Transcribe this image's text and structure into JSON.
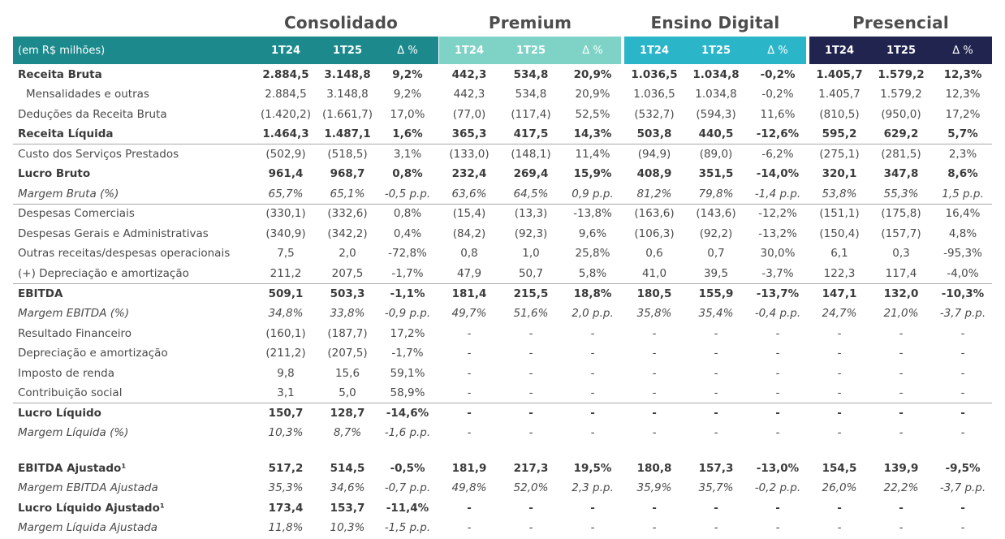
{
  "segments": [
    {
      "title": "Consolidado",
      "color": "#1c8a8c",
      "text_color": "#ffffff"
    },
    {
      "title": "Premium",
      "color": "#7fd3c6",
      "text_color": "#ffffff"
    },
    {
      "title": "Ensino Digital",
      "color": "#2bb5c9",
      "text_color": "#ffffff"
    },
    {
      "title": "Presencial",
      "color": "#20244f",
      "text_color": "#ffffff"
    }
  ],
  "header": {
    "unit_label": "(em R$ milhões)",
    "columns": [
      "1T24",
      "1T25",
      "Δ %"
    ]
  },
  "rows": [
    {
      "label": "Receita Bruta",
      "style": "bold",
      "values": [
        "2.884,5",
        "3.148,8",
        "9,2%",
        "442,3",
        "534,8",
        "20,9%",
        "1.036,5",
        "1.034,8",
        "-0,2%",
        "1.405,7",
        "1.579,2",
        "12,3%"
      ]
    },
    {
      "label": "Mensalidades e outras",
      "style": "indent",
      "values": [
        "2.884,5",
        "3.148,8",
        "9,2%",
        "442,3",
        "534,8",
        "20,9%",
        "1.036,5",
        "1.034,8",
        "-0,2%",
        "1.405,7",
        "1.579,2",
        "12,3%"
      ]
    },
    {
      "label": "Deduções da Receita Bruta",
      "style": "normal",
      "values": [
        "(1.420,2)",
        "(1.661,7)",
        "17,0%",
        "(77,0)",
        "(117,4)",
        "52,5%",
        "(532,7)",
        "(594,3)",
        "11,6%",
        "(810,5)",
        "(950,0)",
        "17,2%"
      ]
    },
    {
      "label": "Receita Líquida",
      "style": "bold",
      "values": [
        "1.464,3",
        "1.487,1",
        "1,6%",
        "365,3",
        "417,5",
        "14,3%",
        "503,8",
        "440,5",
        "-12,6%",
        "595,2",
        "629,2",
        "5,7%"
      ]
    },
    {
      "label": "Custo dos Serviços Prestados",
      "style": "normal",
      "values": [
        "(502,9)",
        "(518,5)",
        "3,1%",
        "(133,0)",
        "(148,1)",
        "11,4%",
        "(94,9)",
        "(89,0)",
        "-6,2%",
        "(275,1)",
        "(281,5)",
        "2,3%"
      ]
    },
    {
      "label": "Lucro Bruto",
      "style": "bold",
      "values": [
        "961,4",
        "968,7",
        "0,8%",
        "232,4",
        "269,4",
        "15,9%",
        "408,9",
        "351,5",
        "-14,0%",
        "320,1",
        "347,8",
        "8,6%"
      ]
    },
    {
      "label": "Margem Bruta (%)",
      "style": "italic",
      "values": [
        "65,7%",
        "65,1%",
        "-0,5 p.p.",
        "63,6%",
        "64,5%",
        "0,9 p.p.",
        "81,2%",
        "79,8%",
        "-1,4 p.p.",
        "53,8%",
        "55,3%",
        "1,5 p.p."
      ]
    },
    {
      "label": "Despesas Comerciais",
      "style": "normal",
      "values": [
        "(330,1)",
        "(332,6)",
        "0,8%",
        "(15,4)",
        "(13,3)",
        "-13,8%",
        "(163,6)",
        "(143,6)",
        "-12,2%",
        "(151,1)",
        "(175,8)",
        "16,4%"
      ]
    },
    {
      "label": "Despesas Gerais e Administrativas",
      "style": "normal",
      "values": [
        "(340,9)",
        "(342,2)",
        "0,4%",
        "(84,2)",
        "(92,3)",
        "9,6%",
        "(106,3)",
        "(92,2)",
        "-13,2%",
        "(150,4)",
        "(157,7)",
        "4,8%"
      ]
    },
    {
      "label": "Outras receitas/despesas operacionais",
      "style": "normal",
      "values": [
        "7,5",
        "2,0",
        "-72,8%",
        "0,8",
        "1,0",
        "25,8%",
        "0,6",
        "0,7",
        "30,0%",
        "6,1",
        "0,3",
        "-95,3%"
      ]
    },
    {
      "label": "(+) Depreciação e amortização",
      "style": "normal",
      "values": [
        "211,2",
        "207,5",
        "-1,7%",
        "47,9",
        "50,7",
        "5,8%",
        "41,0",
        "39,5",
        "-3,7%",
        "122,3",
        "117,4",
        "-4,0%"
      ]
    },
    {
      "label": "EBITDA",
      "style": "bold",
      "values": [
        "509,1",
        "503,3",
        "-1,1%",
        "181,4",
        "215,5",
        "18,8%",
        "180,5",
        "155,9",
        "-13,7%",
        "147,1",
        "132,0",
        "-10,3%"
      ]
    },
    {
      "label": "Margem EBITDA (%)",
      "style": "italic",
      "values": [
        "34,8%",
        "33,8%",
        "-0,9 p.p.",
        "49,7%",
        "51,6%",
        "2,0 p.p.",
        "35,8%",
        "35,4%",
        "-0,4 p.p.",
        "24,7%",
        "21,0%",
        "-3,7 p.p."
      ]
    },
    {
      "label": "Resultado Financeiro",
      "style": "normal",
      "values": [
        "(160,1)",
        "(187,7)",
        "17,2%",
        "-",
        "-",
        "-",
        "-",
        "-",
        "-",
        "-",
        "-",
        "-"
      ]
    },
    {
      "label": "Depreciação e amortização",
      "style": "normal",
      "values": [
        "(211,2)",
        "(207,5)",
        "-1,7%",
        "-",
        "-",
        "-",
        "-",
        "-",
        "-",
        "-",
        "-",
        "-"
      ]
    },
    {
      "label": "Imposto de renda",
      "style": "normal",
      "values": [
        "9,8",
        "15,6",
        "59,1%",
        "-",
        "-",
        "-",
        "-",
        "-",
        "-",
        "-",
        "-",
        "-"
      ]
    },
    {
      "label": "Contribuição social",
      "style": "normal",
      "values": [
        "3,1",
        "5,0",
        "58,9%",
        "-",
        "-",
        "-",
        "-",
        "-",
        "-",
        "-",
        "-",
        "-"
      ]
    },
    {
      "label": "Lucro Líquido",
      "style": "bold",
      "values": [
        "150,7",
        "128,7",
        "-14,6%",
        "-",
        "-",
        "-",
        "-",
        "-",
        "-",
        "-",
        "-",
        "-"
      ]
    },
    {
      "label": "Margem Líquida (%)",
      "style": "italic",
      "values": [
        "10,3%",
        "8,7%",
        "-1,6 p.p.",
        "-",
        "-",
        "-",
        "-",
        "-",
        "-",
        "-",
        "-",
        "-"
      ]
    },
    {
      "label": "EBITDA Ajustado¹",
      "style": "bold",
      "values": [
        "517,2",
        "514,5",
        "-0,5%",
        "181,9",
        "217,3",
        "19,5%",
        "180,8",
        "157,3",
        "-13,0%",
        "154,5",
        "139,9",
        "-9,5%"
      ]
    },
    {
      "label": "Margem EBITDA Ajustada",
      "style": "italic",
      "values": [
        "35,3%",
        "34,6%",
        "-0,7 p.p.",
        "49,8%",
        "52,0%",
        "2,3 p.p.",
        "35,9%",
        "35,7%",
        "-0,2 p.p.",
        "26,0%",
        "22,2%",
        "-3,7 p.p."
      ]
    },
    {
      "label": "Lucro Líquido Ajustado¹",
      "style": "bold",
      "values": [
        "173,4",
        "153,7",
        "-11,4%",
        "-",
        "-",
        "-",
        "-",
        "-",
        "-",
        "-",
        "-",
        "-"
      ]
    },
    {
      "label": "Margem Líquida Ajustada",
      "style": "italic",
      "values": [
        "11,8%",
        "10,3%",
        "-1,5 p.p.",
        "-",
        "-",
        "-",
        "-",
        "-",
        "-",
        "-",
        "-",
        "-"
      ]
    }
  ]
}
